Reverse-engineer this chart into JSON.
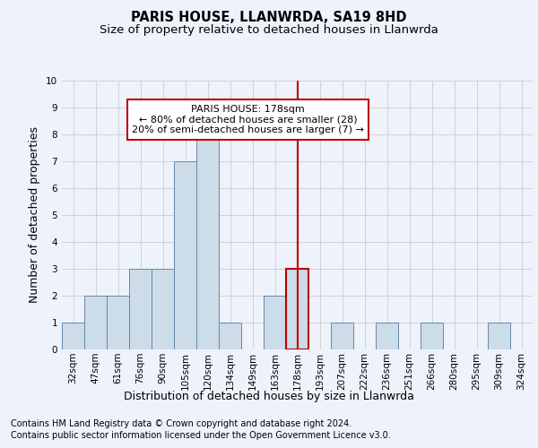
{
  "title": "PARIS HOUSE, LLANWRDA, SA19 8HD",
  "subtitle": "Size of property relative to detached houses in Llanwrda",
  "xlabel": "Distribution of detached houses by size in Llanwrda",
  "ylabel": "Number of detached properties",
  "footnote1": "Contains HM Land Registry data © Crown copyright and database right 2024.",
  "footnote2": "Contains public sector information licensed under the Open Government Licence v3.0.",
  "annotation_title": "PARIS HOUSE: 178sqm",
  "annotation_line1": "← 80% of detached houses are smaller (28)",
  "annotation_line2": "20% of semi-detached houses are larger (7) →",
  "bar_labels": [
    "32sqm",
    "47sqm",
    "61sqm",
    "76sqm",
    "90sqm",
    "105sqm",
    "120sqm",
    "134sqm",
    "149sqm",
    "163sqm",
    "178sqm",
    "193sqm",
    "207sqm",
    "222sqm",
    "236sqm",
    "251sqm",
    "266sqm",
    "280sqm",
    "295sqm",
    "309sqm",
    "324sqm"
  ],
  "bar_values": [
    1,
    2,
    2,
    3,
    3,
    7,
    8,
    1,
    0,
    2,
    3,
    0,
    1,
    0,
    1,
    0,
    1,
    0,
    0,
    1,
    0
  ],
  "bar_color": "#ccdce8",
  "bar_edge_color": "#6688aa",
  "highlight_index": 10,
  "highlight_edge_color": "#bb0000",
  "vline_color": "#bb0000",
  "ylim": [
    0,
    10
  ],
  "yticks": [
    0,
    1,
    2,
    3,
    4,
    5,
    6,
    7,
    8,
    9,
    10
  ],
  "grid_color": "#cccccc",
  "bg_color": "#eef2fb",
  "annotation_box_color": "#ffffff",
  "annotation_box_edge": "#bb0000",
  "title_fontsize": 10.5,
  "subtitle_fontsize": 9.5,
  "ylabel_fontsize": 9,
  "xlabel_fontsize": 9,
  "footnote_fontsize": 7,
  "annotation_fontsize": 8,
  "tick_fontsize": 7.5
}
